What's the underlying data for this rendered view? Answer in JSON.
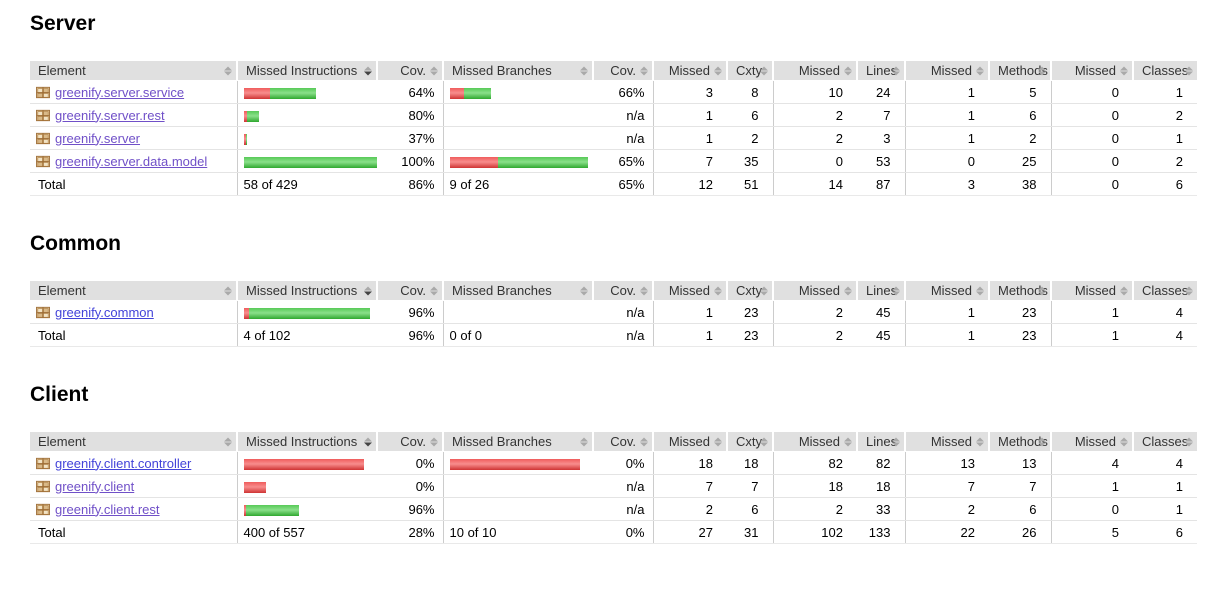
{
  "report": {
    "type": "coverage-report",
    "sort": {
      "column": "Missed Instructions",
      "column_index": 1,
      "direction": "desc"
    }
  },
  "colors": {
    "header_bg": "#e0e0e0",
    "bar_red": "#e04a4a",
    "bar_green": "#4dbb4d",
    "link_unvisited": "#4343d9",
    "link_visited": "#7050c8",
    "total_rule": "#999999",
    "row_rule": "#e4e4e4"
  },
  "icons": {
    "package_icon": "tan grid package icon",
    "sort_icon": "up-down sort arrows"
  },
  "columns": [
    "Element",
    "Missed Instructions",
    "Cov.",
    "Missed Branches",
    "Cov.",
    "Missed",
    "Cxty",
    "Missed",
    "Lines",
    "Missed",
    "Methods",
    "Missed",
    "Classes"
  ],
  "sections": [
    {
      "title": "Server",
      "rows": [
        {
          "element": "greenify.server.service",
          "visited": true,
          "instr_bar": [
            26,
            46
          ],
          "instr_cov": "64%",
          "branch_bar": [
            14,
            27
          ],
          "branch_cov": "66%",
          "nums": [
            "3",
            "8",
            "10",
            "24",
            "1",
            "5",
            "0",
            "1"
          ]
        },
        {
          "element": "greenify.server.rest",
          "visited": true,
          "instr_bar": [
            3,
            12
          ],
          "instr_cov": "80%",
          "branch_bar": null,
          "branch_cov": "n/a",
          "nums": [
            "1",
            "6",
            "2",
            "7",
            "1",
            "6",
            "0",
            "2"
          ]
        },
        {
          "element": "greenify.server",
          "visited": true,
          "instr_bar": [
            2,
            1
          ],
          "instr_cov": "37%",
          "branch_bar": null,
          "branch_cov": "n/a",
          "nums": [
            "1",
            "2",
            "2",
            "3",
            "1",
            "2",
            "0",
            "1"
          ]
        },
        {
          "element": "greenify.server.data.model",
          "visited": true,
          "instr_bar": [
            0,
            140
          ],
          "instr_cov": "100%",
          "branch_bar": [
            48,
            90
          ],
          "branch_cov": "65%",
          "nums": [
            "7",
            "35",
            "0",
            "53",
            "0",
            "25",
            "0",
            "2"
          ]
        }
      ],
      "total": {
        "label": "Total",
        "instr_text": "58 of 429",
        "instr_cov": "86%",
        "branch_text": "9 of 26",
        "branch_cov": "65%",
        "nums": [
          "12",
          "51",
          "14",
          "87",
          "3",
          "38",
          "0",
          "6"
        ]
      }
    },
    {
      "title": "Common",
      "rows": [
        {
          "element": "greenify.common",
          "visited": false,
          "instr_bar": [
            5,
            121
          ],
          "instr_cov": "96%",
          "branch_bar": null,
          "branch_cov": "n/a",
          "nums": [
            "1",
            "23",
            "2",
            "45",
            "1",
            "23",
            "1",
            "4"
          ]
        }
      ],
      "total": {
        "label": "Total",
        "instr_text": "4 of 102",
        "instr_cov": "96%",
        "branch_text": "0 of 0",
        "branch_cov": "n/a",
        "nums": [
          "1",
          "23",
          "2",
          "45",
          "1",
          "23",
          "1",
          "4"
        ]
      }
    },
    {
      "title": "Client",
      "rows": [
        {
          "element": "greenify.client.controller",
          "visited": false,
          "instr_bar": [
            120,
            0
          ],
          "instr_cov": "0%",
          "branch_bar": [
            130,
            0
          ],
          "branch_cov": "0%",
          "nums": [
            "18",
            "18",
            "82",
            "82",
            "13",
            "13",
            "4",
            "4"
          ]
        },
        {
          "element": "greenify.client",
          "visited": true,
          "instr_bar": [
            22,
            0
          ],
          "instr_cov": "0%",
          "branch_bar": null,
          "branch_cov": "n/a",
          "nums": [
            "7",
            "7",
            "18",
            "18",
            "7",
            "7",
            "1",
            "1"
          ]
        },
        {
          "element": "greenify.client.rest",
          "visited": true,
          "instr_bar": [
            2,
            53
          ],
          "instr_cov": "96%",
          "branch_bar": null,
          "branch_cov": "n/a",
          "nums": [
            "2",
            "6",
            "2",
            "33",
            "2",
            "6",
            "0",
            "1"
          ]
        }
      ],
      "total": {
        "label": "Total",
        "instr_text": "400 of 557",
        "instr_cov": "28%",
        "branch_text": "10 of 10",
        "branch_cov": "0%",
        "nums": [
          "27",
          "31",
          "102",
          "133",
          "22",
          "26",
          "5",
          "6"
        ]
      }
    }
  ]
}
